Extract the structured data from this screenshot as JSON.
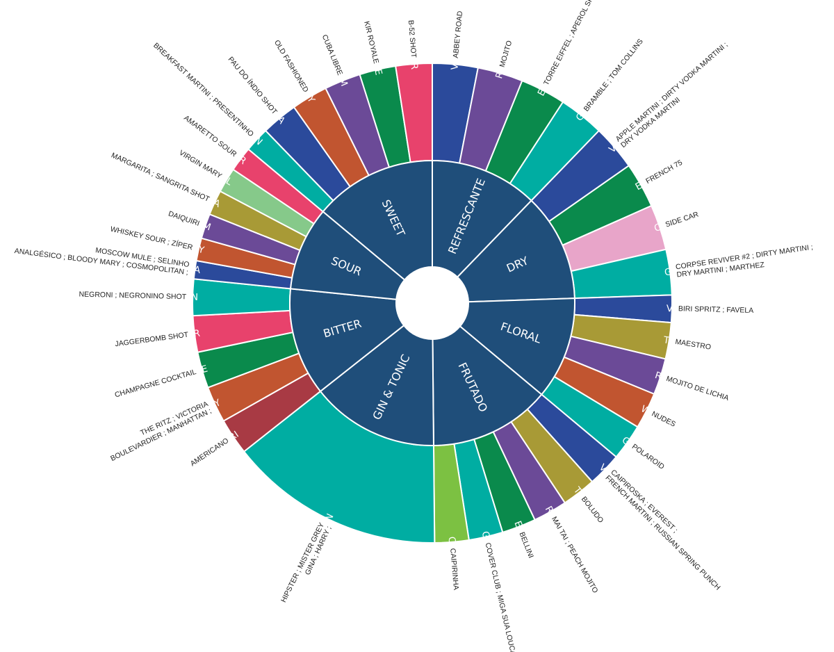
{
  "colors": {
    "inner": "#1f4e7a",
    "separator": "#ffffff",
    "spirits": {
      "VODKA": "#2b4a9b",
      "RUM": "#6b4a97",
      "ESPUMANTE": "#0a8a4c",
      "LICOR": "#e8426c",
      "WHISKEY": "#c15530",
      "GIN": "#00ada2",
      "TEQUILA": "#a89a36",
      "SEM ALCOOL": "#86c98a",
      "CONHAQUE": "#e8a5c9",
      "CAMPARI": "#a83a44",
      "CACHAÇA": "#7cc142"
    }
  },
  "inner_ring": [
    {
      "label": "SWEET"
    },
    {
      "label": "REFRESCANTE"
    },
    {
      "label": "DRY"
    },
    {
      "label": "FLORAL"
    },
    {
      "label": "FRUTADO"
    },
    {
      "label": "GIN & TONIC"
    },
    {
      "label": "BITTER"
    },
    {
      "label": "SOUR"
    }
  ],
  "outer_ring": [
    {
      "spirit": "VODKA",
      "drinks": "ABBEY ROAD",
      "weight": 1,
      "group": "REFRESCANTE"
    },
    {
      "spirit": "RUM",
      "drinks": "MOJITO",
      "weight": 1,
      "group": "REFRESCANTE"
    },
    {
      "spirit": "ESPUMANTE",
      "drinks": "TORRE EIFFEL ; APEROL SPRITZ",
      "weight": 1,
      "group": "REFRESCANTE"
    },
    {
      "spirit": "GIN",
      "drinks": "BRAMBLE ; TOM COLLINS",
      "weight": 1,
      "group": "REFRESCANTE"
    },
    {
      "spirit": "VODKA",
      "drinks": "APPLE MARTINI ; DIRTY VODKA MARTINI ; DRY VODKA MARTINI",
      "weight": 1,
      "group": "DRY"
    },
    {
      "spirit": "ESPUMANTE",
      "drinks": "FRENCH 75",
      "weight": 1,
      "group": "DRY"
    },
    {
      "spirit": "CONHAQUE",
      "drinks": "SIDE CAR",
      "weight": 1,
      "group": "DRY"
    },
    {
      "spirit": "GIN",
      "drinks": "CORPSE REVIVER #2 ; DIRTY MARTINI ; DRY MARTINI ; MARTHEZ",
      "weight": 1,
      "group": "DRY"
    },
    {
      "spirit": "VODKA",
      "drinks": "BIRI SPRITZ ; FAVELA",
      "weight": 0.6,
      "group": "FLORAL"
    },
    {
      "spirit": "TEQUILA",
      "drinks": "MAESTRO",
      "weight": 0.8,
      "group": "FLORAL"
    },
    {
      "spirit": "RUM",
      "drinks": "MOJITO DE LICHIA",
      "weight": 0.8,
      "group": "FLORAL"
    },
    {
      "spirit": "WHISKEY",
      "drinks": "NUDES",
      "weight": 0.8,
      "group": "FLORAL"
    },
    {
      "spirit": "GIN",
      "drinks": "POLAROID",
      "weight": 0.8,
      "group": "FLORAL"
    },
    {
      "spirit": "VODKA",
      "drinks": "CAIPIROSKA ; EVEREST ; FRENCH MARTINI ; RUSSIAN SPRING PUNCH",
      "weight": 0.75,
      "group": "FRUTADO"
    },
    {
      "spirit": "TEQUILA",
      "drinks": "BOLUDO",
      "weight": 0.75,
      "group": "FRUTADO"
    },
    {
      "spirit": "RUM",
      "drinks": "MAI TAI ; PEACH MOJITO",
      "weight": 0.75,
      "group": "FRUTADO"
    },
    {
      "spirit": "ESPUMANTE",
      "drinks": "BELLINI",
      "weight": 0.75,
      "group": "FRUTADO"
    },
    {
      "spirit": "GIN",
      "drinks": "COVER CLUB ; MIGA SUA LOUCA",
      "weight": 0.75,
      "group": "FRUTADO"
    },
    {
      "spirit": "CACHAÇA",
      "drinks": "CAIPIRINHA",
      "weight": 0.75,
      "group": "FRUTADO"
    },
    {
      "spirit": "GIN",
      "drinks": "GINA ; HARRY ; HIPSTER ; MISTER GREY",
      "weight": 4.75,
      "group": "GIN & TONIC"
    },
    {
      "spirit": "CAMPARI",
      "drinks": "AMERICANO",
      "weight": 0.8,
      "group": "BITTER"
    },
    {
      "spirit": "WHISKEY",
      "drinks": "BOULEVARDIER ; MANHATTAN ; THE RITZ ; VICTORIA",
      "weight": 0.8,
      "group": "BITTER"
    },
    {
      "spirit": "ESPUMANTE",
      "drinks": "CHAMPAGNE COCKTAIL",
      "weight": 0.8,
      "group": "BITTER"
    },
    {
      "spirit": "LICOR",
      "drinks": "JAGGERBOMB SHOT",
      "weight": 0.8,
      "group": "BITTER"
    },
    {
      "spirit": "GIN",
      "drinks": "NEGRONI ; NEGRONINO SHOT",
      "weight": 0.8,
      "group": "BITTER"
    },
    {
      "spirit": "VODKA",
      "drinks": "ANALGÉSICO ; BLOODY MARY ; COSMOPOLITAN ; MOSCOW MULE ; SELINHO",
      "weight": 0.4,
      "group": "SOUR"
    },
    {
      "spirit": "WHISKEY",
      "drinks": "WHISKEY SOUR ; ZÍPER",
      "weight": 0.5,
      "group": "SOUR"
    },
    {
      "spirit": "RUM",
      "drinks": "DAIQUIRI",
      "weight": 0.55,
      "group": "SOUR"
    },
    {
      "spirit": "TEQUILA",
      "drinks": "MARGARITA ; SANGRITA SHOT",
      "weight": 0.55,
      "group": "SOUR"
    },
    {
      "spirit": "SEM ALCOOL",
      "drinks": "VIRGIN MARY",
      "weight": 0.55,
      "group": "SOUR"
    },
    {
      "spirit": "LICOR",
      "drinks": "AMARETTO SOUR",
      "weight": 0.55,
      "group": "SOUR"
    },
    {
      "spirit": "GIN",
      "drinks": "BREAKFAST MARTINI ; PRESENTINHO",
      "weight": 0.55,
      "group": "SWEET"
    },
    {
      "spirit": "VODKA",
      "drinks": "PAU DO ÍNDIO SHOT",
      "weight": 0.8,
      "group": "SWEET"
    },
    {
      "spirit": "WHISKEY",
      "drinks": "OLD FASHIONED",
      "weight": 0.8,
      "group": "SWEET"
    },
    {
      "spirit": "RUM",
      "drinks": "CUBA LIBRE",
      "weight": 0.8,
      "group": "SWEET"
    },
    {
      "spirit": "ESPUMANTE",
      "drinks": "KIR ROYALE",
      "weight": 0.8,
      "group": "SWEET"
    },
    {
      "spirit": "LICOR",
      "drinks": "B-52 SHOT",
      "weight": 0.8,
      "group": "SWEET"
    }
  ]
}
